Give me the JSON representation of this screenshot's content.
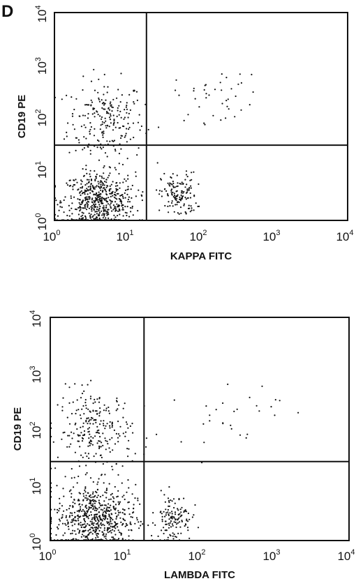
{
  "figure": {
    "panel_letter": "D"
  },
  "chart_data": [
    {
      "type": "scatter",
      "title": "",
      "xlabel": "KAPPA FITC",
      "ylabel": "CD19 PE",
      "xscale": "log",
      "yscale": "log",
      "xlim": [
        1,
        10000
      ],
      "ylim": [
        1,
        10000
      ],
      "xticks": [
        {
          "base": "10",
          "exp": "0"
        },
        {
          "base": "10",
          "exp": "1"
        },
        {
          "base": "10",
          "exp": "2"
        },
        {
          "base": "10",
          "exp": "3"
        },
        {
          "base": "10",
          "exp": "4"
        }
      ],
      "yticks": [
        {
          "base": "10",
          "exp": "0"
        },
        {
          "base": "10",
          "exp": "1"
        },
        {
          "base": "10",
          "exp": "2"
        },
        {
          "base": "10",
          "exp": "3"
        },
        {
          "base": "10",
          "exp": "4"
        }
      ],
      "quadrant_gate": {
        "x": 18,
        "y": 28
      },
      "grid": false,
      "legend": "none",
      "point_color": "#111111",
      "clusters": [
        {
          "name_hint": "CD19+ kappa-",
          "cx": 5,
          "cy": 80,
          "sx": 0.26,
          "sy": 0.4,
          "n": 230
        },
        {
          "name_hint": "CD19- low",
          "cx": 4,
          "cy": 2.3,
          "sx": 0.25,
          "sy": 0.28,
          "n": 560
        },
        {
          "name_hint": "CD19- kappa mid",
          "cx": 50,
          "cy": 3,
          "sx": 0.12,
          "sy": 0.22,
          "n": 140
        },
        {
          "name_hint": "CD19+ kappa+",
          "cx": 170,
          "cy": 250,
          "sx": 0.3,
          "sy": 0.25,
          "n": 40
        }
      ]
    },
    {
      "type": "scatter",
      "title": "",
      "xlabel": "LAMBDA FITC",
      "ylabel": "CD19 PE",
      "xscale": "log",
      "yscale": "log",
      "xlim": [
        1,
        10000
      ],
      "ylim": [
        1,
        10000
      ],
      "xticks": [
        {
          "base": "10",
          "exp": "0"
        },
        {
          "base": "10",
          "exp": "1"
        },
        {
          "base": "10",
          "exp": "2"
        },
        {
          "base": "10",
          "exp": "3"
        },
        {
          "base": "10",
          "exp": "4"
        }
      ],
      "yticks": [
        {
          "base": "10",
          "exp": "0"
        },
        {
          "base": "10",
          "exp": "1"
        },
        {
          "base": "10",
          "exp": "2"
        },
        {
          "base": "10",
          "exp": "3"
        },
        {
          "base": "10",
          "exp": "4"
        }
      ],
      "quadrant_gate": {
        "x": 18,
        "y": 26
      },
      "grid": false,
      "legend": "none",
      "point_color": "#111111",
      "clusters": [
        {
          "name_hint": "CD19+ lambda-",
          "cx": 4,
          "cy": 90,
          "sx": 0.25,
          "sy": 0.38,
          "n": 250
        },
        {
          "name_hint": "CD19- low",
          "cx": 4,
          "cy": 2.5,
          "sx": 0.27,
          "sy": 0.3,
          "n": 600
        },
        {
          "name_hint": "CD19- lambda mid",
          "cx": 45,
          "cy": 2.6,
          "sx": 0.12,
          "sy": 0.22,
          "n": 130
        },
        {
          "name_hint": "CD19+ lambda+",
          "cx": 250,
          "cy": 200,
          "sx": 0.35,
          "sy": 0.3,
          "n": 30
        }
      ]
    }
  ]
}
